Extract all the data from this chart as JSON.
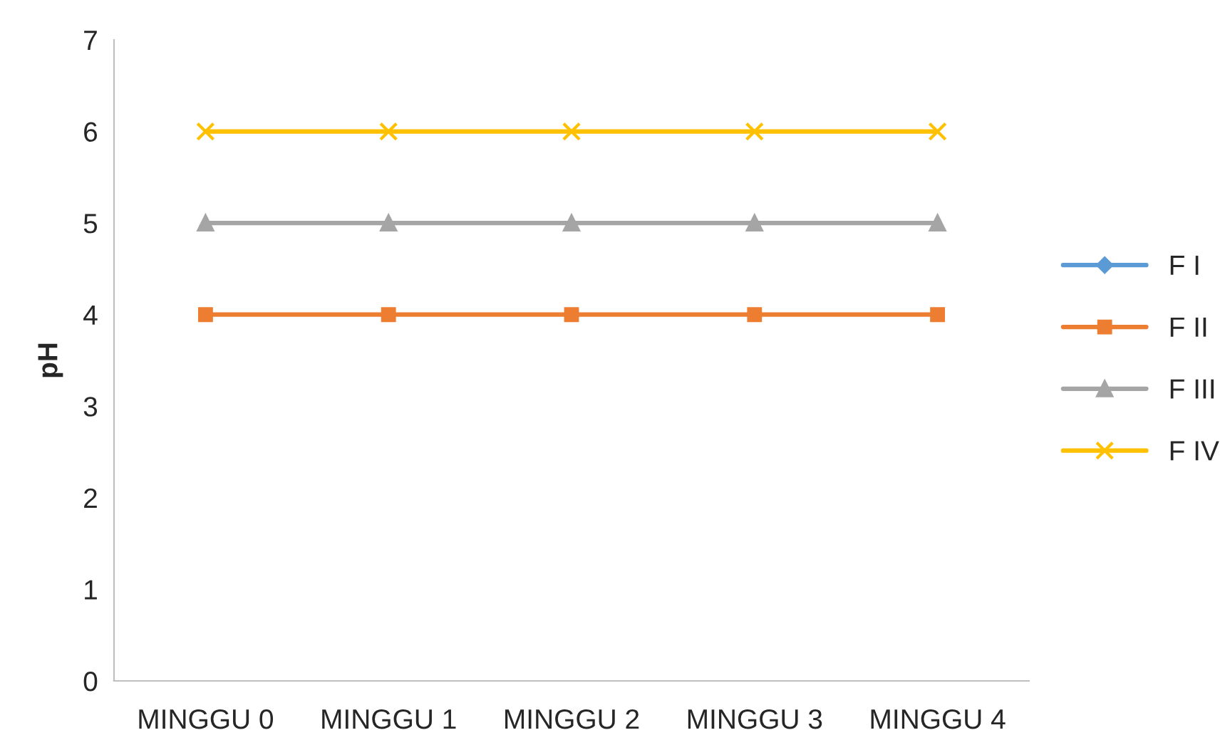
{
  "chart_data": {
    "type": "line",
    "ylabel": "pH",
    "categories": [
      "MINGGU 0",
      "MINGGU 1",
      "MINGGU 2",
      "MINGGU 3",
      "MINGGU 4"
    ],
    "series": [
      {
        "name": "F I",
        "color": "#5b9bd5",
        "marker": "diamond",
        "values": [
          null,
          null,
          null,
          null,
          null
        ]
      },
      {
        "name": "F II",
        "color": "#ed7d31",
        "marker": "square",
        "values": [
          4,
          4,
          4,
          4,
          4
        ]
      },
      {
        "name": "F III",
        "color": "#a5a5a5",
        "marker": "triangle",
        "values": [
          5,
          5,
          5,
          5,
          5
        ]
      },
      {
        "name": "F IV",
        "color": "#ffc000",
        "marker": "cross",
        "values": [
          6,
          6,
          6,
          6,
          6
        ]
      }
    ],
    "ylim": [
      0,
      7
    ],
    "yticks": [
      0,
      1,
      2,
      3,
      4,
      5,
      6,
      7
    ],
    "grid": false,
    "legend": "right"
  }
}
